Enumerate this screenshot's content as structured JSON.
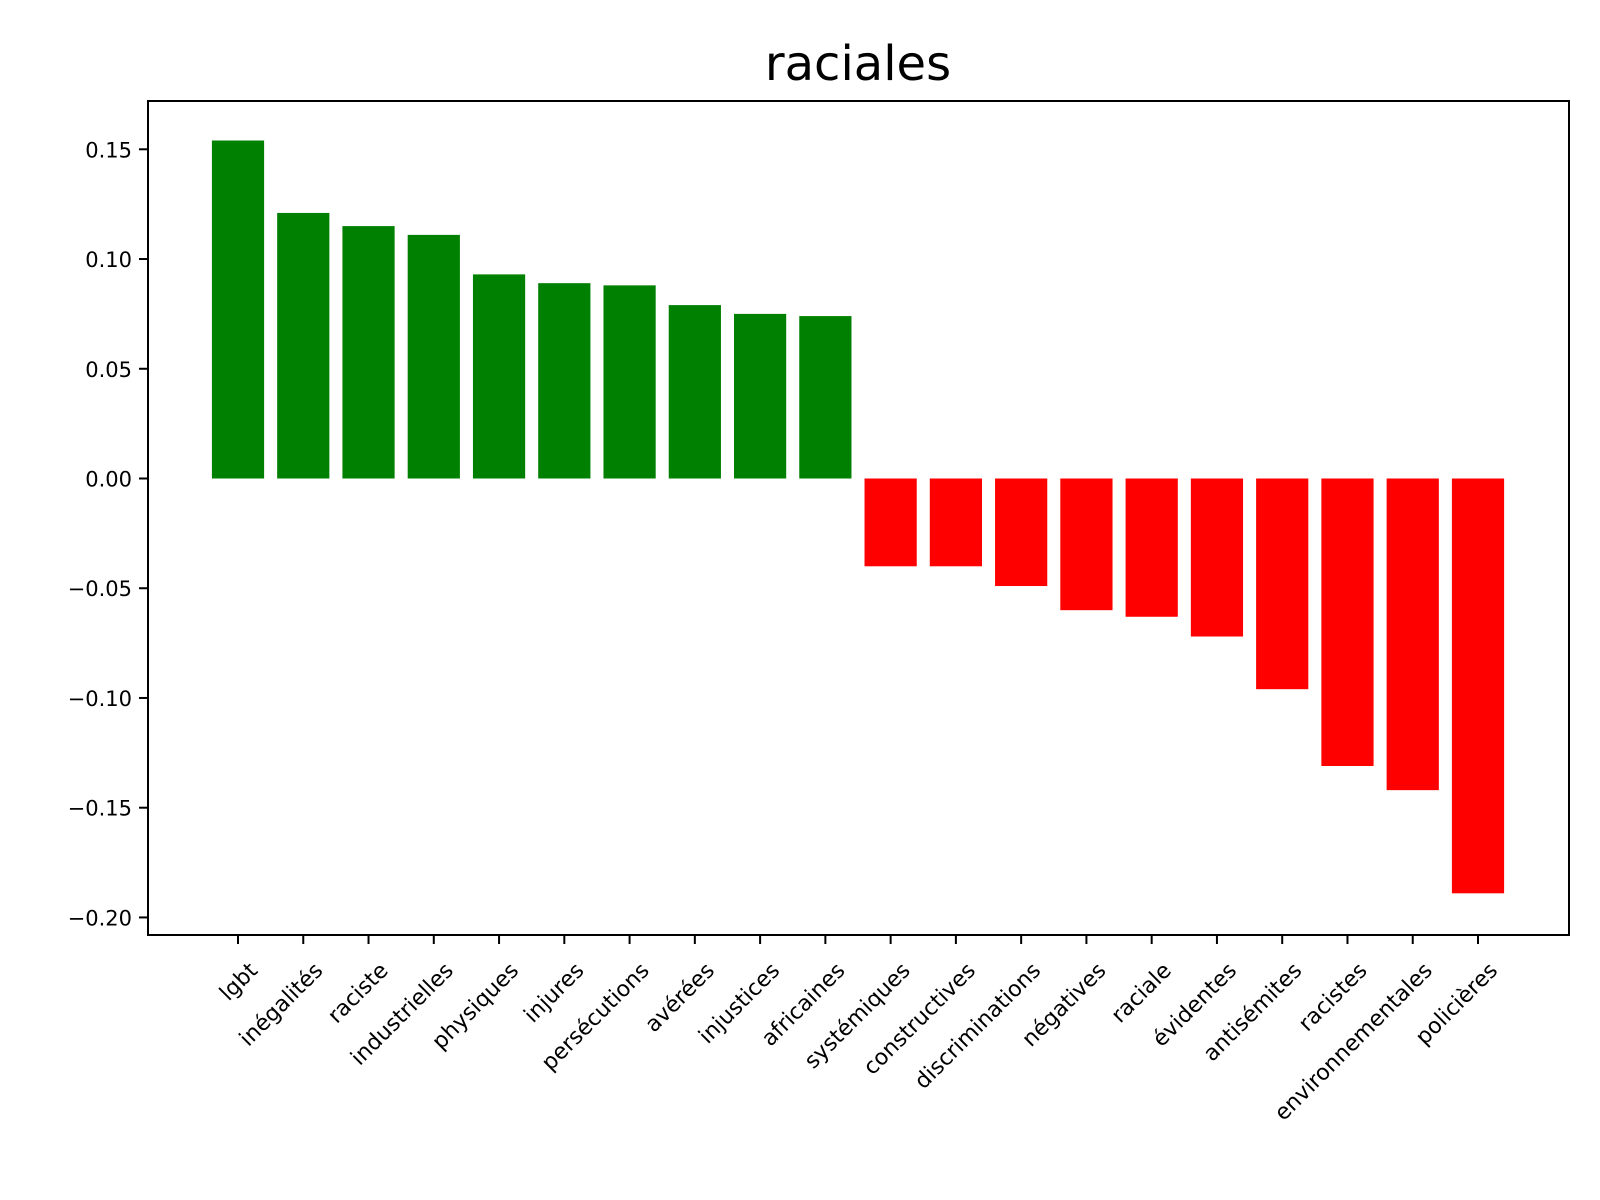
{
  "chart_data": {
    "type": "bar",
    "title": "raciales",
    "xlabel": "",
    "ylabel": "",
    "ylim": [
      -0.208,
      0.172
    ],
    "yticks": [
      0.15,
      0.1,
      0.05,
      0.0,
      -0.05,
      -0.1,
      -0.15,
      -0.2
    ],
    "ytick_labels": [
      "0.15",
      "0.10",
      "0.05",
      "0.00",
      "−0.05",
      "−0.10",
      "−0.15",
      "−0.20"
    ],
    "categories": [
      "lgbt",
      "inégalités",
      "raciste",
      "industrielles",
      "physiques",
      "injures",
      "persécutions",
      "avérées",
      "injustices",
      "africaines",
      "systémiques",
      "constructives",
      "discriminations",
      "négatives",
      "raciale",
      "évidentes",
      "antisémites",
      "racistes",
      "environnementales",
      "policières"
    ],
    "values": [
      0.154,
      0.121,
      0.115,
      0.111,
      0.093,
      0.089,
      0.088,
      0.079,
      0.075,
      0.074,
      -0.04,
      -0.04,
      -0.049,
      -0.06,
      -0.063,
      -0.072,
      -0.096,
      -0.131,
      -0.142,
      -0.189
    ],
    "positive_color": "#008000",
    "negative_color": "#ff0000",
    "grid": false,
    "legend": "none"
  }
}
